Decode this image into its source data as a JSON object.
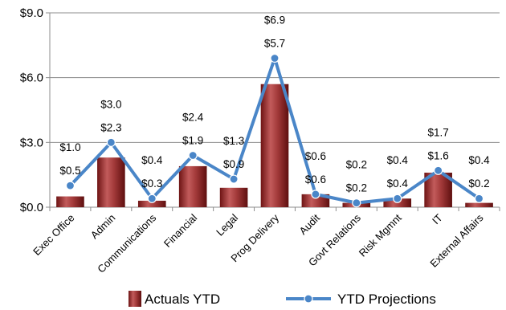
{
  "chart_data": {
    "type": "bar",
    "categories": [
      "Exec Office",
      "Admin",
      "Communications",
      "Financial",
      "Legal",
      "Prog Delivery",
      "Audit",
      "Govt Relations",
      "Risk Mgmnt",
      "IT",
      "External Affairs"
    ],
    "series": [
      {
        "name": "Actuals YTD",
        "type": "bar",
        "values": [
          0.5,
          2.3,
          0.3,
          1.9,
          0.9,
          5.7,
          0.6,
          0.2,
          0.4,
          1.6,
          0.2
        ],
        "labels": [
          "$0.5",
          "$2.3",
          "$0.3",
          "$1.9",
          "$0.9",
          "$5.7",
          "$0.6",
          "$0.2",
          "$0.4",
          "$1.6",
          "$0.2"
        ],
        "color": "#9b2b2b"
      },
      {
        "name": "YTD Projections",
        "type": "line",
        "values": [
          1.0,
          3.0,
          0.4,
          2.4,
          1.3,
          6.9,
          0.6,
          0.2,
          0.4,
          1.7,
          0.4
        ],
        "labels": [
          "$1.0",
          "$3.0",
          "$0.4",
          "$2.4",
          "$1.3",
          "$6.9",
          "$0.6",
          "$0.2",
          "$0.4",
          "$1.7",
          "$0.4"
        ],
        "color": "#4a86c8"
      }
    ],
    "ylim": [
      0,
      9
    ],
    "yticks": [
      0,
      3,
      6,
      9
    ],
    "ytick_labels": [
      "$0.0",
      "$3.0",
      "$6.0",
      "$9.0"
    ],
    "grid": true,
    "legend_position": "bottom"
  }
}
